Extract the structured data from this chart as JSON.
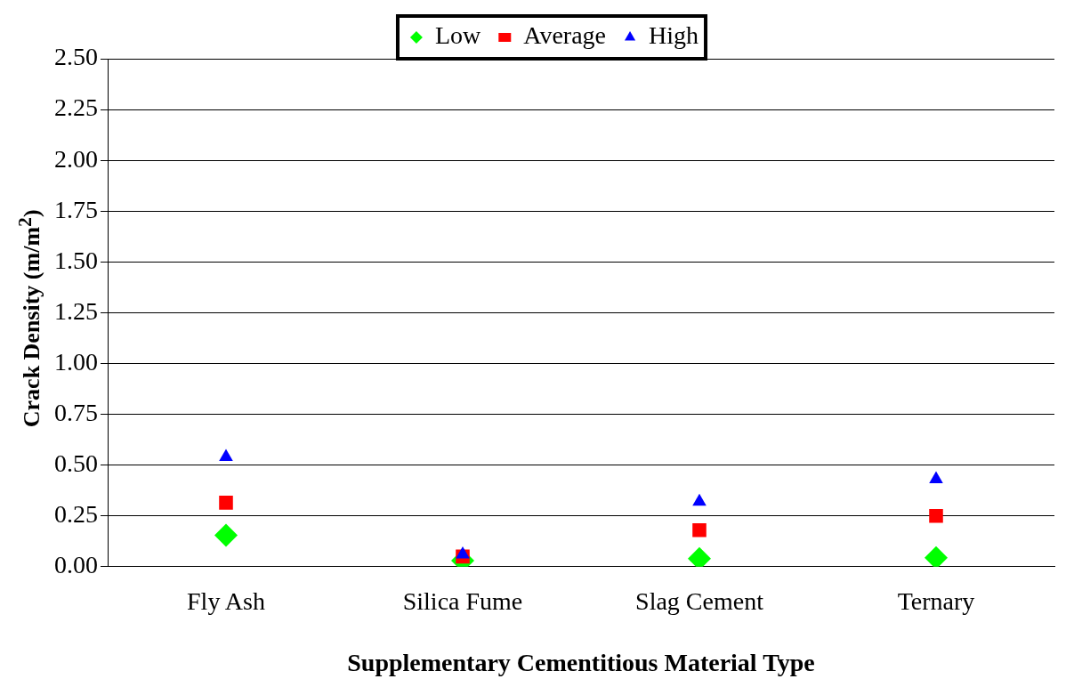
{
  "chart_data": {
    "type": "scatter",
    "xlabel": "Supplementary Cementitious Material Type",
    "ylabel": "Crack Density (m/m$^{2}$)",
    "categories": [
      "Fly Ash",
      "Silica Fume",
      "Slag Cement",
      "Ternary"
    ],
    "series": [
      {
        "name": "Low",
        "color": "#00ff00",
        "marker": "diamond",
        "values": [
          0.155,
          0.03,
          0.04,
          0.044
        ]
      },
      {
        "name": "Average",
        "color": "#ff0000",
        "marker": "square",
        "values": [
          0.315,
          0.05,
          0.18,
          0.25
        ]
      },
      {
        "name": "High",
        "color": "#0000ff",
        "marker": "triangle",
        "values": [
          0.54,
          0.06,
          0.32,
          0.43
        ]
      }
    ],
    "ylim": [
      0,
      2.5
    ],
    "yticks": [
      {
        "value": 0,
        "label": "0.00"
      },
      {
        "value": 0.25,
        "label": "0.25"
      },
      {
        "value": 0.5,
        "label": "0.50"
      },
      {
        "value": 0.75,
        "label": "0.75"
      },
      {
        "value": 1,
        "label": "1.00"
      },
      {
        "value": 1.25,
        "label": "1.25"
      },
      {
        "value": 1.5,
        "label": "1.50"
      },
      {
        "value": 1.75,
        "label": "1.75"
      },
      {
        "value": 2,
        "label": "2.00"
      },
      {
        "value": 2.25,
        "label": "2.25"
      },
      {
        "value": 2.5,
        "label": "2.50"
      }
    ],
    "grid": "y",
    "legend": "top"
  }
}
